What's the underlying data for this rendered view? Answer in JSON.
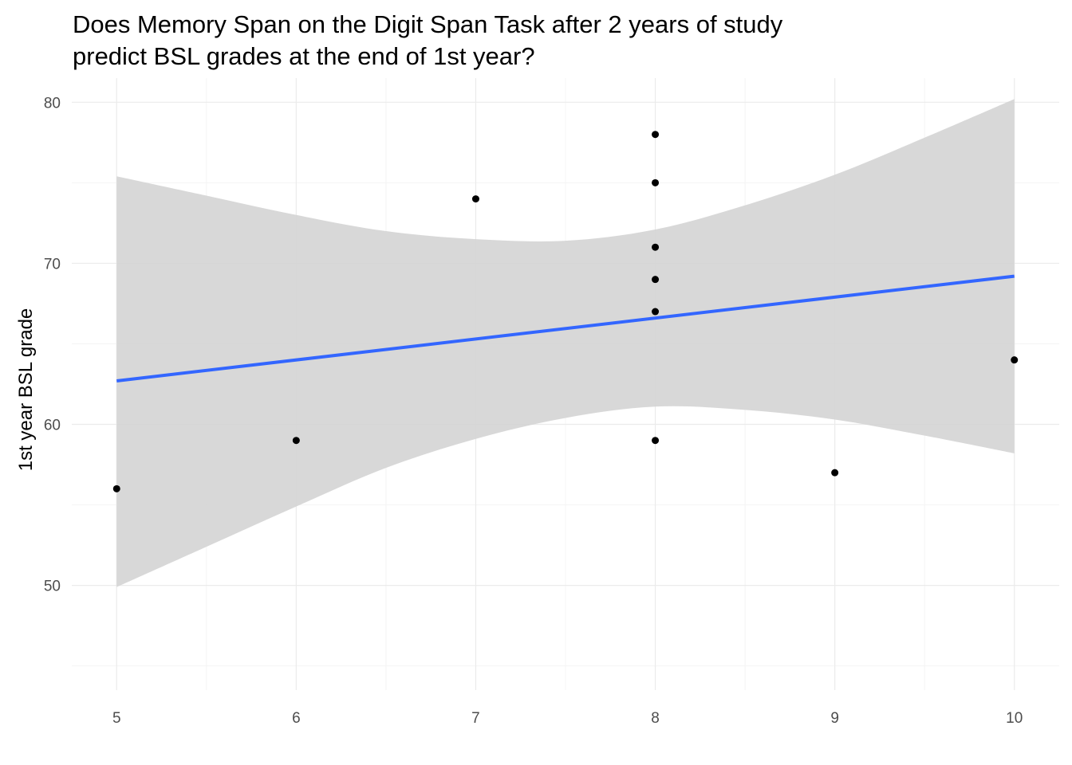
{
  "chart_data": {
    "type": "scatter",
    "title_lines": [
      "Does Memory Span on the Digit Span Task after 2 years of study",
      "predict BSL grades at the end of 1st year?"
    ],
    "xlabel": "",
    "ylabel": "1st year BSL grade",
    "xlim": [
      4.75,
      10.25
    ],
    "ylim": [
      43.5,
      81.5
    ],
    "x_ticks": [
      5,
      6,
      7,
      8,
      9,
      10
    ],
    "x_tick_labels": [
      "5",
      "6",
      "7",
      "8",
      "9",
      "10"
    ],
    "y_ticks": [
      50,
      60,
      70,
      80
    ],
    "y_tick_labels": [
      "50",
      "60",
      "70",
      "80"
    ],
    "x_minor_ticks": [
      5.5,
      6.5,
      7.5,
      8.5,
      9.5
    ],
    "y_minor_ticks": [
      45,
      55,
      65,
      75
    ],
    "grid": true,
    "points": [
      {
        "x": 5,
        "y": 56
      },
      {
        "x": 6,
        "y": 59
      },
      {
        "x": 7,
        "y": 74
      },
      {
        "x": 8,
        "y": 78
      },
      {
        "x": 8,
        "y": 75
      },
      {
        "x": 8,
        "y": 71
      },
      {
        "x": 8,
        "y": 69
      },
      {
        "x": 8,
        "y": 67
      },
      {
        "x": 8,
        "y": 59
      },
      {
        "x": 9,
        "y": 57
      },
      {
        "x": 10,
        "y": 64
      }
    ],
    "fit_line": {
      "x": [
        5,
        10
      ],
      "y": [
        62.7,
        69.2
      ]
    },
    "confidence_band": {
      "x": [
        5,
        5.5,
        6,
        6.5,
        7,
        7.5,
        8,
        8.5,
        9,
        9.5,
        10
      ],
      "upper": [
        75.4,
        74.2,
        73.0,
        72.0,
        71.5,
        71.4,
        72.1,
        73.6,
        75.5,
        77.8,
        80.2
      ],
      "lower": [
        49.9,
        52.4,
        54.9,
        57.3,
        59.1,
        60.4,
        61.1,
        60.9,
        60.3,
        59.3,
        58.2
      ]
    },
    "colors": {
      "points": "#000000",
      "fit_line": "#3366FF",
      "band": "#d4d4d4",
      "grid_major": "#ebebeb",
      "grid_minor": "#f4f4f4"
    }
  }
}
